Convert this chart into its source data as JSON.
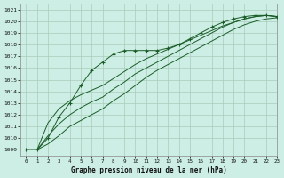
{
  "title": "Graphe pression niveau de la mer (hPa)",
  "background_color": "#cceee4",
  "grid_color": "#aaccbb",
  "line_color": "#1a5c28",
  "xlim": [
    -0.5,
    23
  ],
  "ylim": [
    1008.5,
    1021.5
  ],
  "yticks": [
    1009,
    1010,
    1011,
    1012,
    1013,
    1014,
    1015,
    1016,
    1017,
    1018,
    1019,
    1020,
    1021
  ],
  "xticks": [
    0,
    1,
    2,
    3,
    4,
    5,
    6,
    7,
    8,
    9,
    10,
    11,
    12,
    13,
    14,
    15,
    16,
    17,
    18,
    19,
    20,
    21,
    22,
    23
  ],
  "line1_x": [
    0,
    1,
    2,
    3,
    4,
    5,
    6,
    7,
    8,
    9,
    10,
    11,
    12,
    13,
    14,
    15,
    16,
    17,
    18,
    19,
    20,
    21,
    22,
    23
  ],
  "line1_y": [
    1009.0,
    1009.0,
    1009.5,
    1010.2,
    1011.0,
    1011.5,
    1012.0,
    1012.5,
    1013.2,
    1013.8,
    1014.5,
    1015.2,
    1015.8,
    1016.3,
    1016.8,
    1017.3,
    1017.8,
    1018.3,
    1018.8,
    1019.3,
    1019.7,
    1020.0,
    1020.2,
    1020.3
  ],
  "line2_x": [
    0,
    1,
    2,
    3,
    4,
    5,
    6,
    7,
    8,
    9,
    10,
    11,
    12,
    13,
    14,
    15,
    16,
    17,
    18,
    19,
    20,
    21,
    22,
    23
  ],
  "line2_y": [
    1009.0,
    1009.0,
    1010.2,
    1011.2,
    1012.0,
    1012.6,
    1013.1,
    1013.5,
    1014.2,
    1014.8,
    1015.5,
    1016.0,
    1016.5,
    1017.0,
    1017.5,
    1018.0,
    1018.5,
    1019.0,
    1019.5,
    1019.9,
    1020.2,
    1020.4,
    1020.5,
    1020.4
  ],
  "line3_x": [
    0,
    1,
    2,
    3,
    4,
    5,
    6,
    7,
    8,
    9,
    10,
    11,
    12,
    13,
    14,
    15,
    16,
    17,
    18,
    19,
    20,
    21,
    22,
    23
  ],
  "line3_y": [
    1009.0,
    1009.0,
    1011.3,
    1012.5,
    1013.2,
    1013.7,
    1014.1,
    1014.5,
    1015.1,
    1015.7,
    1016.3,
    1016.8,
    1017.2,
    1017.6,
    1018.0,
    1018.4,
    1018.8,
    1019.2,
    1019.6,
    1019.9,
    1020.2,
    1020.4,
    1020.5,
    1020.4
  ],
  "marked_line_x": [
    0,
    1,
    2,
    3,
    4,
    5,
    6,
    7,
    8,
    9,
    10,
    11,
    12,
    13,
    14,
    15,
    16,
    17,
    18,
    19,
    20,
    21,
    22,
    23
  ],
  "marked_line_y": [
    1009.0,
    1009.0,
    1010.0,
    1011.8,
    1013.0,
    1014.5,
    1015.8,
    1016.5,
    1017.2,
    1017.5,
    1017.5,
    1017.5,
    1017.5,
    1017.7,
    1018.0,
    1018.5,
    1019.0,
    1019.5,
    1019.9,
    1020.2,
    1020.4,
    1020.5,
    1020.5,
    1020.4
  ]
}
